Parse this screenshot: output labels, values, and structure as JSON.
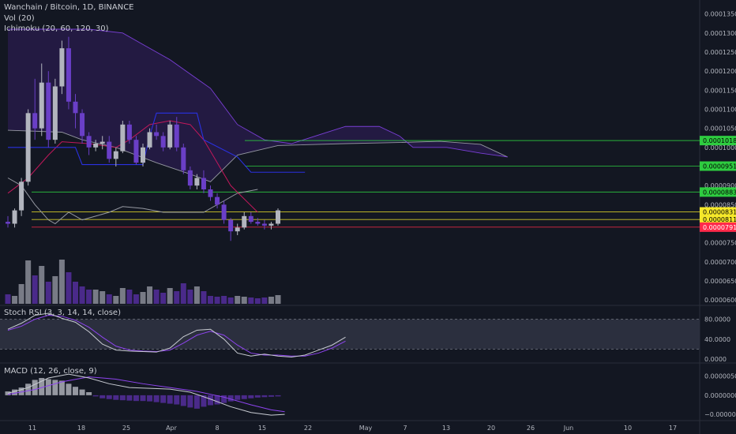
{
  "header": {
    "symbol_line": "Wanchain / Bitcoin, 1D, BINANCE",
    "volume_label": "Vol (20)",
    "ichimoku_label": "Ichimoku (20, 60, 120, 30)"
  },
  "panes": {
    "stoch_label": "Stoch RSI (3, 3, 14, 14, close)",
    "macd_label": "MACD (12, 26, close, 9)"
  },
  "colors": {
    "background": "#131722",
    "up_candle": "#b2b5be",
    "down_candle": "#6a3fc7",
    "cloud_fill": "#2a1c4d",
    "cloud_edge": "#7a3fd6",
    "kijun": "#2a31e0",
    "tenkan": "#c2185b",
    "chikou": "#9598a1",
    "stoch_k": "#c9ccd3",
    "stoch_d": "#8e44ef",
    "macd_line": "#c9ccd3",
    "signal_line": "#8e44ef"
  },
  "chart_data": {
    "type": "candlestick",
    "price_axis": {
      "ticks": [
        "0.0001350",
        "0.0001300",
        "0.0001250",
        "0.0001200",
        "0.0001150",
        "0.0001100",
        "0.0001050",
        "0.0001000",
        "0.0000950",
        "0.0000900",
        "0.0000850",
        "0.0000800",
        "0.0000750",
        "0.0000700",
        "0.0000650",
        "0.0000600"
      ],
      "range": [
        5.9e-05,
        0.000137
      ]
    },
    "time_axis": {
      "labels": [
        "11",
        "18",
        "25",
        "Apr",
        "8",
        "15",
        "22",
        "May",
        "7",
        "13",
        "20",
        "26",
        "Jun",
        "10",
        "17"
      ]
    },
    "level_badges": [
      {
        "value": 0.0001018,
        "label": "0.0001018",
        "color": "#2ecc40"
      },
      {
        "value": 9.51e-05,
        "label": "0.0000951",
        "color": "#2ecc40"
      },
      {
        "value": 8.83e-05,
        "label": "0.0000883",
        "color": "#2ecc40"
      },
      {
        "value": 8.31e-05,
        "label": "0.0000831",
        "color": "#f5e82a"
      },
      {
        "value": 8.11e-05,
        "label": "0.0000811",
        "color": "#f5e82a"
      },
      {
        "value": 7.91e-05,
        "label": "0.0000791",
        "color": "#ff2a4a"
      }
    ],
    "candles": [
      [
        8.05e-05,
        8.2e-05,
        7.9e-05,
        8e-05
      ],
      [
        8e-05,
        8.4e-05,
        7.9e-05,
        8.35e-05
      ],
      [
        8.35e-05,
        9.2e-05,
        8.2e-05,
        9.1e-05
      ],
      [
        9.1e-05,
        0.00011,
        9e-05,
        0.000109
      ],
      [
        0.000109,
        0.000118,
        0.000102,
        0.000105
      ],
      [
        0.000105,
        0.000122,
        0.000103,
        0.000117
      ],
      [
        0.000117,
        0.00012,
        0.0001,
        0.000102
      ],
      [
        0.000102,
        0.000118,
        0.000101,
        0.000116
      ],
      [
        0.000116,
        0.000128,
        0.000114,
        0.000126
      ],
      [
        0.000126,
        0.000129,
        0.00011,
        0.000112
      ],
      [
        0.000112,
        0.000114,
        0.000105,
        0.000109
      ],
      [
        0.000109,
        0.00011,
        0.000101,
        0.000103
      ],
      [
        0.000103,
        0.000104,
        9.8e-05,
        0.0001
      ],
      [
        0.0001,
        0.000102,
        9.9e-05,
        0.000101
      ],
      [
        0.000101,
        0.000103,
        9.95e-05,
        0.0001015
      ],
      [
        0.0001015,
        0.000103,
        9.6e-05,
        9.7e-05
      ],
      [
        9.7e-05,
        0.0001,
        9.5e-05,
        9.9e-05
      ],
      [
        9.9e-05,
        0.000107,
        9.85e-05,
        0.000106
      ],
      [
        0.000106,
        0.000107,
        0.000101,
        0.000102
      ],
      [
        0.000102,
        0.000103,
        9.55e-05,
        9.6e-05
      ],
      [
        9.6e-05,
        0.000101,
        9.5e-05,
        0.0001
      ],
      [
        0.0001,
        0.000105,
        9.95e-05,
        0.000104
      ],
      [
        0.000104,
        0.000106,
        0.000102,
        0.000103
      ],
      [
        0.000103,
        0.000104,
        9.9e-05,
        0.0001
      ],
      [
        0.0001,
        0.000107,
        9.95e-05,
        0.000106
      ],
      [
        0.000106,
        0.000108,
        9.9e-05,
        0.0001
      ],
      [
        0.0001,
        0.000101,
        9.3e-05,
        9.4e-05
      ],
      [
        9.4e-05,
        9.5e-05,
        8.9e-05,
        9e-05
      ],
      [
        9e-05,
        9.3e-05,
        8.9e-05,
        9.2e-05
      ],
      [
        9.2e-05,
        9.4e-05,
        8.8e-05,
        8.9e-05
      ],
      [
        8.9e-05,
        9e-05,
        8.6e-05,
        8.7e-05
      ],
      [
        8.7e-05,
        8.8e-05,
        8.4e-05,
        8.5e-05
      ],
      [
        8.5e-05,
        8.6e-05,
        8e-05,
        8.1e-05
      ],
      [
        8.1e-05,
        8.15e-05,
        7.55e-05,
        7.8e-05
      ],
      [
        7.8e-05,
        8e-05,
        7.7e-05,
        7.9e-05
      ],
      [
        7.9e-05,
        8.3e-05,
        7.85e-05,
        8.2e-05
      ],
      [
        8.2e-05,
        8.3e-05,
        8e-05,
        8.05e-05
      ],
      [
        8.05e-05,
        8.15e-05,
        7.95e-05,
        8e-05
      ],
      [
        8e-05,
        8.1e-05,
        7.85e-05,
        7.95e-05
      ],
      [
        7.95e-05,
        8.05e-05,
        7.85e-05,
        8e-05
      ],
      [
        8e-05,
        8.4e-05,
        7.95e-05,
        8.35e-05
      ]
    ],
    "cloud_span_a": [
      [
        0,
        0.0001045
      ],
      [
        8,
        0.000104
      ],
      [
        11,
        0.000102
      ],
      [
        16,
        0.0001
      ],
      [
        22,
        9.6e-05
      ],
      [
        27,
        9.3e-05
      ],
      [
        30,
        9.1e-05
      ],
      [
        34,
        9.8e-05
      ],
      [
        40,
        0.0001005
      ],
      [
        50,
        0.000101
      ],
      [
        58,
        0.0001013
      ],
      [
        64,
        0.0001016
      ],
      [
        70,
        0.0001008
      ],
      [
        74,
        9.75e-05
      ]
    ],
    "cloud_span_b": [
      [
        0,
        0.000131
      ],
      [
        12,
        0.000131
      ],
      [
        17,
        0.00013
      ],
      [
        20,
        0.000127
      ],
      [
        24,
        0.000123
      ],
      [
        30,
        0.0001155
      ],
      [
        34,
        0.000106
      ],
      [
        38,
        0.000102
      ],
      [
        42,
        0.000101
      ],
      [
        50,
        0.0001055
      ],
      [
        55,
        0.0001055
      ],
      [
        58,
        0.000103
      ],
      [
        60,
        0.0001
      ],
      [
        65,
        0.0001
      ],
      [
        70,
        9.85e-05
      ],
      [
        74,
        9.75e-05
      ]
    ],
    "kijun": [
      [
        0,
        0.0001
      ],
      [
        10,
        0.0001
      ],
      [
        11,
        9.55e-05
      ],
      [
        20,
        9.55e-05
      ],
      [
        21,
        0.000103
      ],
      [
        22,
        0.000109
      ],
      [
        28,
        0.000109
      ],
      [
        29,
        0.000102
      ],
      [
        34,
        9.75e-05
      ],
      [
        36,
        9.35e-05
      ],
      [
        44,
        9.35e-05
      ]
    ],
    "tenkan": [
      [
        0,
        8.8e-05
      ],
      [
        3,
        9.2e-05
      ],
      [
        6,
        9.8e-05
      ],
      [
        8,
        0.0001015
      ],
      [
        12,
        0.000101
      ],
      [
        16,
        0.0001
      ],
      [
        18,
        0.000102
      ],
      [
        21,
        0.000106
      ],
      [
        24,
        0.000107
      ],
      [
        27,
        0.000106
      ],
      [
        29,
        0.000102
      ],
      [
        31,
        9.6e-05
      ],
      [
        33,
        9e-05
      ],
      [
        35,
        8.65e-05
      ],
      [
        37,
        8.3e-05
      ]
    ],
    "chikou": [
      [
        0,
        9.2e-05
      ],
      [
        2,
        9e-05
      ],
      [
        4,
        8.5e-05
      ],
      [
        6,
        8.1e-05
      ],
      [
        7,
        8e-05
      ],
      [
        9,
        8.3e-05
      ],
      [
        11,
        8.1e-05
      ],
      [
        13,
        8.2e-05
      ],
      [
        15,
        8.3e-05
      ],
      [
        17,
        8.45e-05
      ],
      [
        20,
        8.4e-05
      ],
      [
        23,
        8.3e-05
      ],
      [
        26,
        8.3e-05
      ],
      [
        29,
        8.3e-05
      ],
      [
        32,
        8.6e-05
      ],
      [
        34,
        8.8e-05
      ],
      [
        37,
        8.9e-05
      ]
    ],
    "volume": [
      0.12,
      0.1,
      0.25,
      0.55,
      0.36,
      0.48,
      0.28,
      0.35,
      0.56,
      0.4,
      0.28,
      0.22,
      0.18,
      0.18,
      0.16,
      0.12,
      0.1,
      0.2,
      0.18,
      0.12,
      0.15,
      0.22,
      0.18,
      0.14,
      0.2,
      0.16,
      0.26,
      0.18,
      0.22,
      0.16,
      0.1,
      0.09,
      0.1,
      0.08,
      0.1,
      0.09,
      0.08,
      0.07,
      0.08,
      0.09,
      0.11
    ],
    "stoch": {
      "axis_ticks": [
        "80.0000",
        "40.0000",
        "0.0000"
      ],
      "range": [
        0,
        100
      ],
      "band": [
        20,
        80
      ],
      "k": [
        [
          0,
          60
        ],
        [
          2,
          72
        ],
        [
          4,
          88
        ],
        [
          6,
          92
        ],
        [
          8,
          82
        ],
        [
          10,
          74
        ],
        [
          12,
          55
        ],
        [
          14,
          30
        ],
        [
          16,
          18
        ],
        [
          18,
          16
        ],
        [
          20,
          15
        ],
        [
          22,
          14
        ],
        [
          24,
          22
        ],
        [
          26,
          45
        ],
        [
          28,
          58
        ],
        [
          30,
          60
        ],
        [
          32,
          40
        ],
        [
          34,
          12
        ],
        [
          36,
          6
        ],
        [
          38,
          10
        ],
        [
          40,
          6
        ],
        [
          42,
          4
        ],
        [
          44,
          8
        ],
        [
          46,
          18
        ],
        [
          48,
          28
        ],
        [
          50,
          44
        ]
      ],
      "d": [
        [
          0,
          58
        ],
        [
          2,
          66
        ],
        [
          4,
          80
        ],
        [
          6,
          88
        ],
        [
          8,
          86
        ],
        [
          10,
          78
        ],
        [
          12,
          64
        ],
        [
          14,
          44
        ],
        [
          16,
          26
        ],
        [
          18,
          18
        ],
        [
          20,
          16
        ],
        [
          22,
          15
        ],
        [
          24,
          18
        ],
        [
          26,
          32
        ],
        [
          28,
          48
        ],
        [
          30,
          56
        ],
        [
          32,
          48
        ],
        [
          34,
          28
        ],
        [
          36,
          12
        ],
        [
          38,
          8
        ],
        [
          40,
          8
        ],
        [
          42,
          6
        ],
        [
          44,
          6
        ],
        [
          46,
          12
        ],
        [
          48,
          22
        ],
        [
          50,
          36
        ]
      ]
    },
    "macd": {
      "axis_ticks": [
        "0.0000050",
        "0.0000000",
        "−0.0000050"
      ],
      "range": [
        -6.2e-06,
        7.8e-06
      ],
      "histogram": [
        1e-06,
        1.5e-06,
        2e-06,
        3e-06,
        4e-06,
        4.5e-06,
        4.2e-06,
        4e-06,
        3.8e-06,
        3e-06,
        2.2e-06,
        1.5e-06,
        8e-07,
        -3e-07,
        -8e-07,
        -1e-06,
        -1.2e-06,
        -1.3e-06,
        -1.4e-06,
        -1.5e-06,
        -1.5e-06,
        -1.6e-06,
        -1.8e-06,
        -2e-06,
        -2.2e-06,
        -2.4e-06,
        -2.8e-06,
        -3.2e-06,
        -3.5e-06,
        -3e-06,
        -2.6e-06,
        -2.4e-06,
        -2e-06,
        -1.6e-06,
        -1.2e-06,
        -1e-06,
        -8e-07,
        -6e-07,
        -5e-07,
        -4e-07,
        -3e-07
      ],
      "macd_line": [
        [
          0,
          5e-07
        ],
        [
          3,
          2e-06
        ],
        [
          6,
          4.5e-06
        ],
        [
          9,
          5.5e-06
        ],
        [
          12,
          4.5e-06
        ],
        [
          15,
          3e-06
        ],
        [
          18,
          2e-06
        ],
        [
          21,
          1.8e-06
        ],
        [
          24,
          1.6e-06
        ],
        [
          27,
          8e-07
        ],
        [
          30,
          -1e-06
        ],
        [
          33,
          -3e-06
        ],
        [
          36,
          -4.5e-06
        ],
        [
          39,
          -5.2e-06
        ],
        [
          41,
          -5e-06
        ]
      ],
      "signal_line": [
        [
          0,
          2e-07
        ],
        [
          4,
          1.5e-06
        ],
        [
          8,
          3.5e-06
        ],
        [
          12,
          4.8e-06
        ],
        [
          16,
          4.2e-06
        ],
        [
          20,
          3e-06
        ],
        [
          24,
          2e-06
        ],
        [
          28,
          1e-06
        ],
        [
          32,
          -5e-07
        ],
        [
          36,
          -2.5e-06
        ],
        [
          39,
          -3.8e-06
        ],
        [
          41,
          -4.3e-06
        ]
      ]
    }
  }
}
